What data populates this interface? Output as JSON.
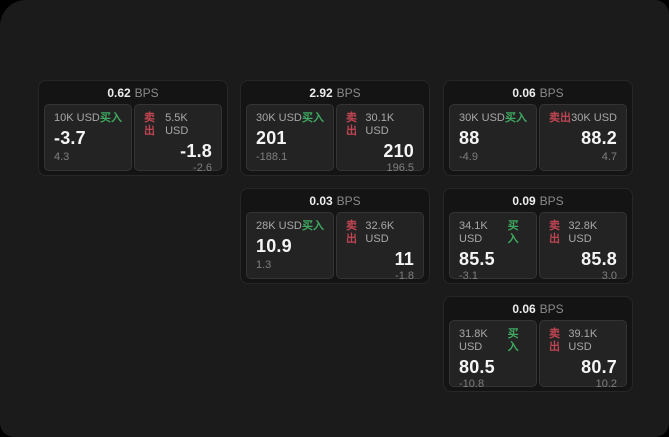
{
  "labels": {
    "buy": "买入",
    "sell": "卖出",
    "bps_suffix": "BPS"
  },
  "colors": {
    "page_bg": "#1b1b1b",
    "card_bg": "#141414",
    "panel_bg": "#232323",
    "buy_green": "#3fa960",
    "sell_red": "#bf4452",
    "value_text": "#f5f5f5",
    "muted_text": "#8a8a8a"
  },
  "cards": [
    {
      "bps": "0.62",
      "buy": {
        "size": "10K USD",
        "value": "-3.7",
        "delta": "4.3"
      },
      "sell": {
        "size": "5.5K USD",
        "value": "-1.8",
        "delta": "-2.6"
      }
    },
    {
      "bps": "2.92",
      "buy": {
        "size": "30K USD",
        "value": "201",
        "delta": "-188.1"
      },
      "sell": {
        "size": "30.1K USD",
        "value": "210",
        "delta": "196.5"
      }
    },
    {
      "bps": "0.06",
      "buy": {
        "size": "30K USD",
        "value": "88",
        "delta": "-4.9"
      },
      "sell": {
        "size": "30K USD",
        "value": "88.2",
        "delta": "4.7"
      }
    },
    {
      "bps": "0.03",
      "buy": {
        "size": "28K USD",
        "value": "10.9",
        "delta": "1.3"
      },
      "sell": {
        "size": "32.6K USD",
        "value": "11",
        "delta": "-1.8"
      }
    },
    {
      "bps": "0.09",
      "buy": {
        "size": "34.1K USD",
        "value": "85.5",
        "delta": "-3.1"
      },
      "sell": {
        "size": "32.8K USD",
        "value": "85.8",
        "delta": "3.0"
      }
    },
    {
      "bps": "0.06",
      "buy": {
        "size": "31.8K USD",
        "value": "80.5",
        "delta": "-10.8"
      },
      "sell": {
        "size": "39.1K USD",
        "value": "80.7",
        "delta": "10.2"
      }
    }
  ]
}
